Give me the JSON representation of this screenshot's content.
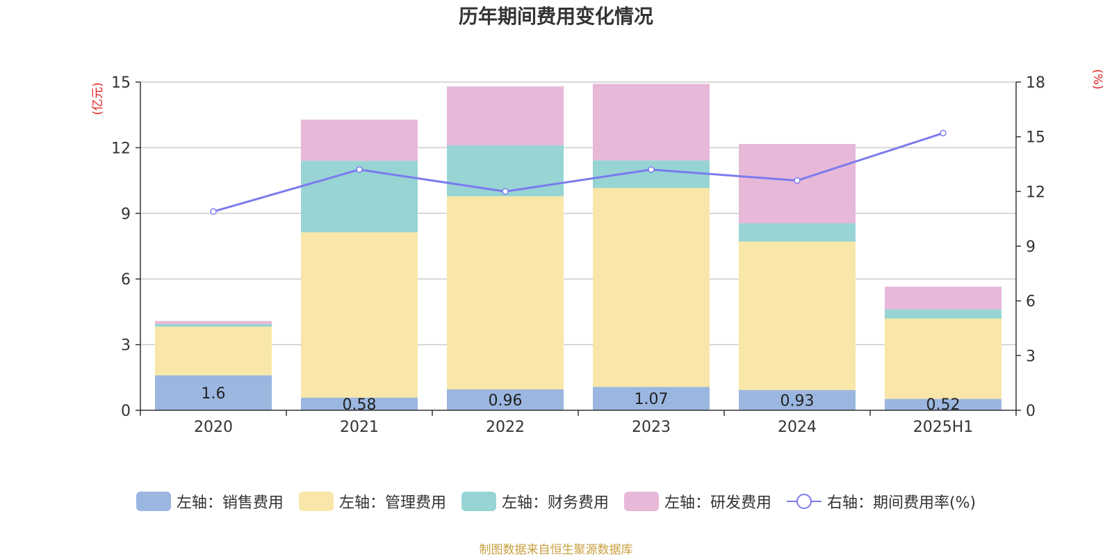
{
  "title": "历年期间费用变化情况",
  "source_note": "制图数据来自恒生聚源数据库",
  "left_unit": "(亿元)",
  "right_unit": "(%)",
  "colors": {
    "sales": "#9bb7e0",
    "admin": "#f8e7a8",
    "finance": "#98d4d4",
    "rd": "#e8b8d8",
    "rate": "#7b7bee",
    "unit_text": "#e02020",
    "grid": "#cccccc",
    "axis": "#333333"
  },
  "legend": [
    {
      "label": "左轴：销售费用",
      "type": "bar",
      "color": "#9bb7e0"
    },
    {
      "label": "左轴：管理费用",
      "type": "bar",
      "color": "#f8e7a8"
    },
    {
      "label": "左轴：财务费用",
      "type": "bar",
      "color": "#98d4d4"
    },
    {
      "label": "左轴：研发费用",
      "type": "bar",
      "color": "#e8b8d8"
    },
    {
      "label": "右轴：期间费用率(%)",
      "type": "line",
      "color": "#7b7bee"
    }
  ],
  "chart_data": {
    "type": "bar",
    "stacked": true,
    "categories": [
      "2020",
      "2021",
      "2022",
      "2023",
      "2024",
      "2025H1"
    ],
    "series": [
      {
        "name": "左轴：销售费用",
        "axis": "left",
        "values": [
          1.6,
          0.58,
          0.96,
          1.07,
          0.93,
          0.52
        ],
        "labels": [
          "1.6",
          "0.58",
          "0.96",
          "1.07",
          "0.93",
          "0.52"
        ]
      },
      {
        "name": "左轴：管理费用",
        "axis": "left",
        "values": [
          2.22,
          7.55,
          8.82,
          9.09,
          6.78,
          3.67
        ]
      },
      {
        "name": "左轴：财务费用",
        "axis": "left",
        "values": [
          0.12,
          3.27,
          2.33,
          1.26,
          0.84,
          0.42
        ]
      },
      {
        "name": "左轴：研发费用",
        "axis": "left",
        "values": [
          0.14,
          1.88,
          2.69,
          3.5,
          3.62,
          1.04
        ]
      },
      {
        "name": "右轴：期间费用率(%)",
        "axis": "right",
        "type": "line",
        "values": [
          10.9,
          13.2,
          12.0,
          13.2,
          12.6,
          15.2
        ]
      }
    ],
    "y_left": {
      "min": 0,
      "max": 15,
      "ticks": [
        0,
        3,
        6,
        9,
        12,
        15
      ]
    },
    "y_right": {
      "min": 0,
      "max": 18,
      "ticks": [
        0,
        3,
        6,
        9,
        12,
        15,
        18
      ]
    },
    "grid": true,
    "legend_position": "bottom"
  }
}
